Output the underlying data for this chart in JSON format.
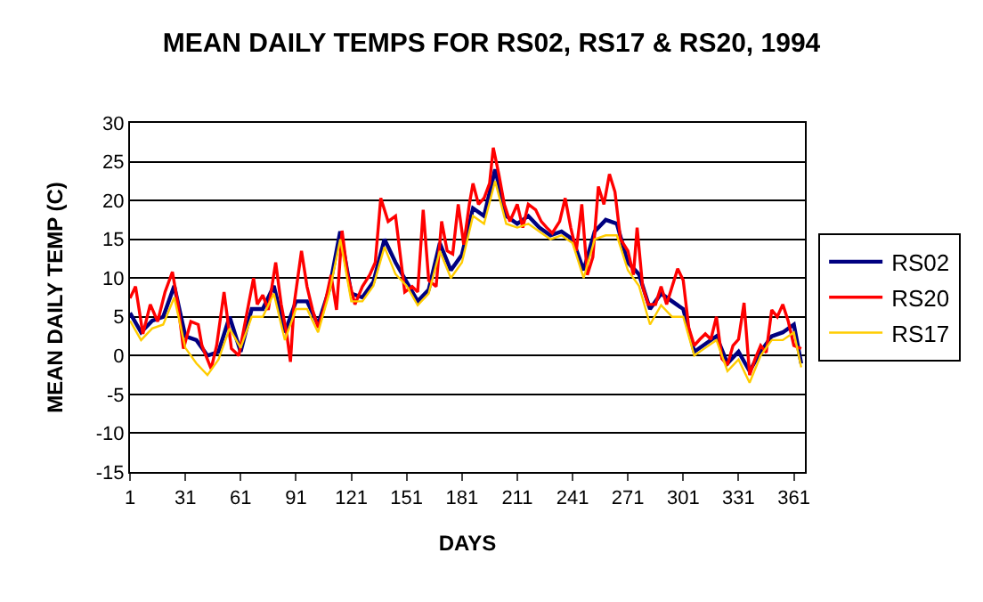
{
  "chart_data": {
    "type": "line",
    "title": "MEAN DAILY TEMPS FOR RS02, RS17 & RS20, 1994",
    "xlabel": "DAYS",
    "ylabel": "MEAN DAILY TEMP (C)",
    "xlim": [
      1,
      367
    ],
    "xticks": [
      1,
      31,
      61,
      91,
      121,
      151,
      181,
      211,
      241,
      271,
      301,
      331,
      361
    ],
    "ylim": [
      -15,
      30
    ],
    "yticks": [
      -15,
      -10,
      -5,
      0,
      5,
      10,
      15,
      20,
      25,
      30
    ],
    "grid": "y",
    "legend": "right",
    "marker": "none",
    "line_style": "solid",
    "series": [
      {
        "name": "RS02",
        "color": "#000080",
        "x": [
          1,
          7,
          13,
          19,
          25,
          31,
          37,
          43,
          49,
          55,
          61,
          67,
          73,
          79,
          85,
          91,
          97,
          103,
          109,
          115,
          121,
          127,
          133,
          139,
          145,
          151,
          157,
          163,
          169,
          175,
          181,
          187,
          193,
          199,
          205,
          211,
          217,
          223,
          229,
          235,
          241,
          247,
          253,
          259,
          265,
          271,
          277,
          283,
          289,
          295,
          301,
          307,
          313,
          319,
          325,
          331,
          337,
          343,
          349,
          355,
          361,
          365
        ],
        "values": [
          5.5,
          3,
          4.5,
          5,
          9,
          2.5,
          2,
          0,
          0.5,
          5,
          0.5,
          6,
          6,
          9,
          3,
          7,
          7,
          4,
          8.5,
          16,
          8,
          7.5,
          9.5,
          15,
          12,
          9.5,
          7,
          8.5,
          14.5,
          11,
          13,
          19,
          18,
          24,
          18,
          17,
          18,
          16.5,
          15.5,
          16,
          15,
          11,
          16,
          17.5,
          17,
          12,
          10.5,
          6,
          8,
          7,
          6,
          0.5,
          1.5,
          2.5,
          -1,
          0.5,
          -2,
          0.5,
          2.5,
          3,
          4,
          -1
        ]
      },
      {
        "name": "RS20",
        "color": "#ff0000",
        "x": [
          1,
          4,
          8,
          12,
          16,
          20,
          24,
          27,
          30,
          34,
          38,
          40,
          45,
          48,
          52,
          56,
          60,
          64,
          68,
          70,
          73,
          76,
          80,
          83,
          86,
          88,
          90,
          94,
          97,
          100,
          103,
          106,
          110,
          113,
          116,
          119,
          123,
          127,
          131,
          134,
          137,
          141,
          145,
          150,
          154,
          157,
          160,
          163,
          167,
          170,
          173,
          176,
          179,
          182,
          185,
          187,
          190,
          193,
          196,
          198,
          201,
          204,
          207,
          211,
          214,
          217,
          221,
          224,
          227,
          230,
          234,
          237,
          240,
          243,
          246,
          249,
          252,
          255,
          258,
          261,
          264,
          267,
          271,
          274,
          276,
          279,
          282,
          286,
          289,
          292,
          295,
          298,
          301,
          304,
          307,
          310,
          313,
          316,
          319,
          322,
          325,
          328,
          331,
          334,
          337,
          340,
          343,
          346,
          349,
          352,
          355,
          358,
          361,
          365
        ],
        "values": [
          7.4,
          8.9,
          2.8,
          6.6,
          4.4,
          8.2,
          10.8,
          6.6,
          0.9,
          4.4,
          4,
          1.3,
          -1.7,
          1.3,
          8.2,
          0.9,
          0,
          5,
          10,
          6.6,
          7.8,
          5.9,
          12,
          6.6,
          2.8,
          -0.8,
          6.6,
          13.5,
          8.9,
          5.9,
          3.6,
          5.9,
          10.4,
          5.9,
          16.1,
          10.4,
          6.6,
          8.9,
          10.4,
          12,
          20.3,
          17.3,
          18,
          8.2,
          8.9,
          8.2,
          18.8,
          9.7,
          8.9,
          17.3,
          13.5,
          13.1,
          19.5,
          14.3,
          19.5,
          22.2,
          19.5,
          20.3,
          22.2,
          26.8,
          23.4,
          19.5,
          17.3,
          19.5,
          16.5,
          19.5,
          18.8,
          17.3,
          16.5,
          15.8,
          17.3,
          20.3,
          16.5,
          13.5,
          19.5,
          10.4,
          12.7,
          21.8,
          19.5,
          23.4,
          21.1,
          15,
          13.5,
          10.4,
          16.5,
          8.9,
          6.6,
          6.6,
          8.9,
          6.6,
          8.9,
          11.2,
          9.7,
          3.6,
          1.3,
          2.1,
          2.8,
          2.1,
          5,
          -0.4,
          -1.2,
          1.3,
          2.1,
          6.8,
          -2.5,
          -0.4,
          1.3,
          0.4,
          5.9,
          5,
          6.6,
          4.4,
          1.3,
          0.9
        ]
      },
      {
        "name": "RS17",
        "color": "#ffcc00",
        "x": [
          1,
          7,
          13,
          19,
          25,
          31,
          37,
          43,
          49,
          55,
          61,
          67,
          73,
          79,
          85,
          91,
          97,
          103,
          109,
          115,
          121,
          127,
          133,
          139,
          145,
          151,
          157,
          163,
          169,
          175,
          181,
          187,
          193,
          199,
          205,
          211,
          217,
          223,
          229,
          235,
          241,
          247,
          253,
          259,
          265,
          271,
          277,
          283,
          289,
          295,
          301,
          307,
          313,
          319,
          325,
          331,
          337,
          343,
          349,
          355,
          361,
          365
        ],
        "values": [
          4.5,
          2,
          3.5,
          4,
          7.5,
          1,
          -1,
          -2.5,
          -0.5,
          3.5,
          1,
          5,
          5,
          8,
          2,
          6,
          6,
          3,
          8,
          15,
          7,
          7,
          9,
          14,
          10.5,
          9,
          6.5,
          8,
          13.5,
          10,
          12,
          18,
          17,
          22.5,
          17,
          16.5,
          17,
          16,
          15,
          15.5,
          14.5,
          10,
          15,
          15.5,
          15.5,
          11,
          9,
          4,
          6.5,
          5,
          5,
          0,
          1,
          2,
          -2,
          -0.5,
          -3.5,
          0,
          2,
          2,
          3,
          -1.5
        ]
      }
    ]
  }
}
